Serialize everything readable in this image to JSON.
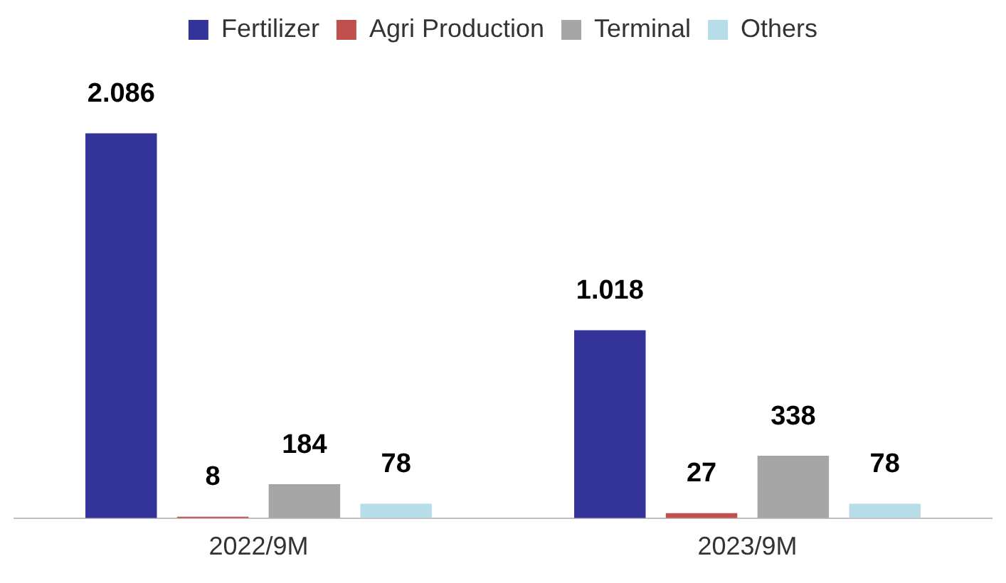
{
  "chart_data": {
    "type": "bar",
    "categories": [
      "2022/9M",
      "2023/9M"
    ],
    "legend": "top",
    "series": [
      {
        "name": "Fertilizer",
        "color": "#333399",
        "values": [
          2086,
          1018
        ],
        "value_labels": [
          "2.086",
          "1.018"
        ]
      },
      {
        "name": "Agri Production",
        "color": "#c0504d",
        "values": [
          8,
          27
        ],
        "value_labels": [
          "8",
          "27"
        ]
      },
      {
        "name": "Terminal",
        "color": "#a6a6a6",
        "values": [
          184,
          338
        ],
        "value_labels": [
          "184",
          "338"
        ]
      },
      {
        "name": "Others",
        "color": "#b7dee8",
        "values": [
          78,
          78
        ],
        "value_labels": [
          "78",
          "78"
        ]
      }
    ]
  }
}
